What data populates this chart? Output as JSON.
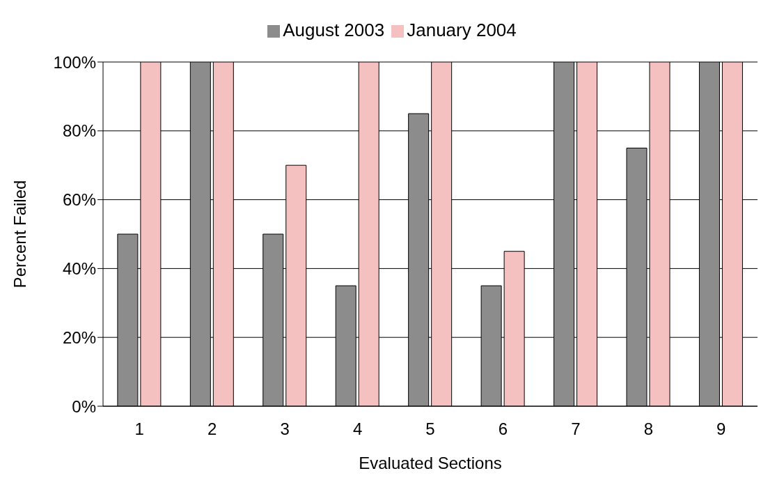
{
  "chart_data": {
    "type": "bar",
    "xlabel": "Evaluated Sections",
    "ylabel": "Percent Failed",
    "categories": [
      "1",
      "2",
      "3",
      "4",
      "5",
      "6",
      "7",
      "8",
      "9"
    ],
    "series": [
      {
        "name": "August 2003",
        "color": "#8c8c8c",
        "values": [
          50,
          100,
          50,
          35,
          85,
          35,
          100,
          75,
          100
        ]
      },
      {
        "name": "January 2004",
        "color": "#f5c0c0",
        "values": [
          100,
          100,
          70,
          100,
          100,
          45,
          100,
          100,
          100
        ]
      }
    ],
    "ylim": [
      0,
      100
    ],
    "yticks": [
      {
        "value": 0,
        "label": "0%"
      },
      {
        "value": 20,
        "label": "20%"
      },
      {
        "value": 40,
        "label": "40%"
      },
      {
        "value": 60,
        "label": "60%"
      },
      {
        "value": 80,
        "label": "80%"
      },
      {
        "value": 100,
        "label": "100%"
      }
    ],
    "grid": "y",
    "legend": "top"
  }
}
